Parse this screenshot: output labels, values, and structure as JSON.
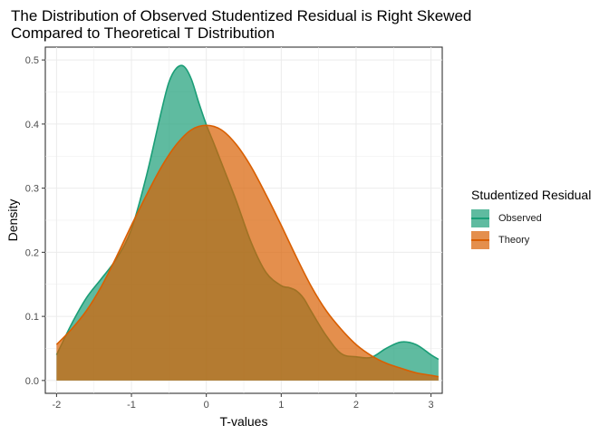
{
  "chart_data": {
    "type": "area",
    "title_lines": [
      "The Distribution of Observed Studentized Residual is Right Skewed",
      "Compared to Theoretical T Distribution"
    ],
    "xlabel": "T-values",
    "ylabel": "Density",
    "xlim": [
      -2.15,
      3.15
    ],
    "ylim": [
      -0.02,
      0.52
    ],
    "x_ticks": [
      -2,
      -1,
      0,
      1,
      2,
      3
    ],
    "x_tick_labels": [
      "-2",
      "-1",
      "0",
      "1",
      "2",
      "3"
    ],
    "y_ticks": [
      0,
      0.1,
      0.2,
      0.3,
      0.4,
      0.5
    ],
    "y_tick_labels": [
      "0.0",
      "0.1",
      "0.2",
      "0.3",
      "0.4",
      "0.5"
    ],
    "grid": true,
    "legend": {
      "title": "Studentized Residual",
      "position": "right",
      "entries": [
        "Observed",
        "Theory"
      ]
    },
    "series": [
      {
        "name": "Observed",
        "fill_color": "#1b9e77",
        "line_color": "#1b9e77",
        "fill_opacity": 0.7,
        "x": [
          -2.0,
          -1.8,
          -1.6,
          -1.4,
          -1.2,
          -1.0,
          -0.8,
          -0.6,
          -0.5,
          -0.4,
          -0.3,
          -0.2,
          -0.1,
          0.0,
          0.1,
          0.2,
          0.4,
          0.6,
          0.8,
          1.0,
          1.1,
          1.2,
          1.3,
          1.4,
          1.6,
          1.8,
          2.0,
          2.2,
          2.4,
          2.6,
          2.8,
          3.0,
          3.1
        ],
        "y": [
          0.04,
          0.088,
          0.129,
          0.159,
          0.19,
          0.236,
          0.319,
          0.42,
          0.465,
          0.487,
          0.49,
          0.47,
          0.433,
          0.399,
          0.37,
          0.34,
          0.28,
          0.215,
          0.168,
          0.148,
          0.145,
          0.14,
          0.128,
          0.108,
          0.07,
          0.042,
          0.037,
          0.036,
          0.05,
          0.06,
          0.056,
          0.04,
          0.033
        ]
      },
      {
        "name": "Theory",
        "fill_color": "#d95f02",
        "line_color": "#d95f02",
        "fill_opacity": 0.7,
        "x": [
          -2.0,
          -1.8,
          -1.6,
          -1.4,
          -1.2,
          -1.0,
          -0.8,
          -0.6,
          -0.4,
          -0.2,
          0.0,
          0.2,
          0.4,
          0.6,
          0.8,
          1.0,
          1.2,
          1.4,
          1.6,
          1.8,
          2.0,
          2.2,
          2.4,
          2.6,
          2.8,
          3.0,
          3.1
        ],
        "y": [
          0.056,
          0.08,
          0.109,
          0.147,
          0.193,
          0.242,
          0.289,
          0.333,
          0.368,
          0.391,
          0.398,
          0.391,
          0.368,
          0.333,
          0.289,
          0.242,
          0.193,
          0.147,
          0.109,
          0.08,
          0.056,
          0.039,
          0.027,
          0.019,
          0.012,
          0.008,
          0.006
        ]
      }
    ]
  }
}
